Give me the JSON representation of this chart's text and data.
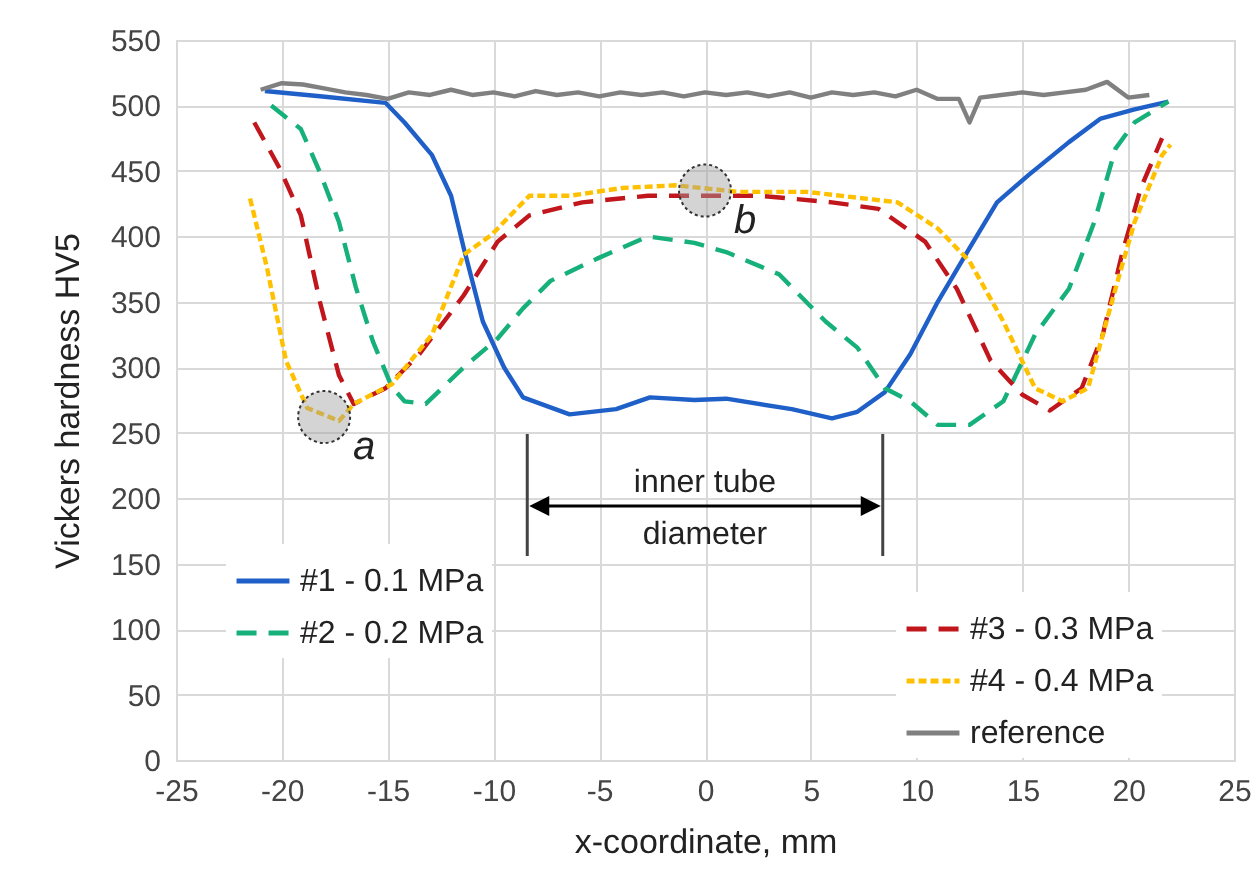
{
  "chart_data": {
    "type": "line",
    "xlabel": "x-coordinate, mm",
    "ylabel": "Vickers hardness HV5",
    "xlim": [
      -25,
      25
    ],
    "xticks": [
      -25,
      -20,
      -15,
      -10,
      -5,
      0,
      5,
      10,
      15,
      20,
      25
    ],
    "ylim": [
      0,
      550
    ],
    "yticks": [
      0,
      50,
      100,
      150,
      200,
      250,
      300,
      350,
      400,
      450,
      500,
      550
    ],
    "grid": true,
    "legend": "bottom",
    "marker": "none",
    "annotations": [
      "inner tube diameter",
      {
        "text": "a",
        "x": -18,
        "y": 262
      },
      {
        "text": "b",
        "x": 0,
        "y": 435
      }
    ],
    "series": [
      {
        "name": "#1 - 0.1 MPa",
        "color": "#1f5fc8",
        "line_style": "solid",
        "x": [
          -20.8,
          -18.2,
          -15.1,
          -14.2,
          -12.9,
          -12,
          -11.4,
          -10.5,
          -9.5,
          -8.6,
          -6.4,
          -4.2,
          -2.6,
          -0.5,
          1,
          4.1,
          6,
          7.2,
          8.5,
          9.7,
          11,
          12.5,
          13.8,
          15.3,
          17.2,
          18.7,
          20.3,
          21.9
        ],
        "values": [
          511,
          507,
          502,
          487,
          462,
          431,
          391,
          335,
          300,
          277,
          264,
          268,
          277,
          275,
          276,
          268,
          261,
          266,
          281,
          310,
          350,
          391,
          426,
          447,
          472,
          490,
          497,
          503
        ]
      },
      {
        "name": "#2 - 0.2 MPa",
        "color": "#16b07a",
        "line_style": "dashed",
        "x": [
          -20.5,
          -19.1,
          -18.2,
          -17.3,
          -16.5,
          -15.7,
          -14.8,
          -14.2,
          -13.2,
          -11.4,
          -9.8,
          -8.6,
          -7.3,
          -5.1,
          -2.7,
          -0.5,
          1,
          3.5,
          5.7,
          7.2,
          8.5,
          9.7,
          11,
          12.5,
          14.1,
          15.6,
          17.2,
          18.4,
          19.4,
          20.3,
          21.9
        ],
        "values": [
          500,
          482,
          449,
          411,
          361,
          320,
          285,
          274,
          272,
          300,
          322,
          345,
          366,
          383,
          400,
          395,
          388,
          371,
          335,
          315,
          284,
          274,
          256,
          256,
          274,
          325,
          360,
          411,
          467,
          487,
          503
        ]
      },
      {
        "name": "#3 - 0.3 MPa",
        "color": "#c0161c",
        "line_style": "dashed",
        "x": [
          -21.3,
          -20.1,
          -19.1,
          -18.2,
          -17.3,
          -16.6,
          -15.1,
          -13.5,
          -11.4,
          -9.8,
          -8.3,
          -5.8,
          -2.7,
          -0.5,
          2.6,
          6,
          8.2,
          10.4,
          11.9,
          13.5,
          15,
          16.3,
          17.8,
          18.8,
          19.7,
          20.6,
          21.6
        ],
        "values": [
          487,
          452,
          416,
          350,
          294,
          272,
          284,
          310,
          355,
          396,
          416,
          426,
          431,
          431,
          431,
          426,
          421,
          396,
          360,
          305,
          279,
          267,
          284,
          325,
          386,
          437,
          475
        ]
      },
      {
        "name": "#4 - 0.4 MPa",
        "color": "#ffc000",
        "line_style": "dotted",
        "x": [
          -21.5,
          -20.7,
          -19.8,
          -18.8,
          -17.3,
          -16.6,
          -14.8,
          -12.9,
          -11.4,
          -10.1,
          -8.3,
          -6.4,
          -3.9,
          -1.4,
          1.6,
          4.8,
          9.1,
          11,
          12.5,
          14.1,
          15.6,
          16.9,
          18.1,
          19.4,
          20.3,
          21.6,
          22
        ],
        "values": [
          429,
          376,
          305,
          269,
          259,
          272,
          287,
          325,
          386,
          401,
          431,
          431,
          437,
          439,
          434,
          434,
          426,
          406,
          381,
          335,
          284,
          274,
          284,
          360,
          411,
          462,
          470
        ]
      },
      {
        "name": "reference",
        "color": "#808080",
        "line_style": "solid",
        "x": [
          -21,
          -20,
          -19,
          -18,
          -17,
          -16,
          -15,
          -14,
          -13,
          -12,
          -11,
          -10,
          -9,
          -8,
          -7,
          -6,
          -5,
          -4,
          -3,
          -2,
          -1,
          0,
          1,
          2,
          3,
          4,
          5,
          6,
          7,
          8,
          9,
          10,
          11,
          12,
          12.5,
          13,
          14,
          15,
          16,
          17,
          18,
          19,
          20,
          21
        ],
        "values": [
          512,
          517,
          516,
          513,
          510,
          508,
          505,
          510,
          508,
          512,
          508,
          510,
          507,
          511,
          508,
          510,
          507,
          510,
          508,
          510,
          507,
          510,
          508,
          510,
          507,
          510,
          506,
          510,
          508,
          510,
          507,
          512,
          505,
          505,
          487,
          506,
          508,
          510,
          508,
          510,
          512,
          518,
          506,
          508
        ]
      }
    ]
  }
}
